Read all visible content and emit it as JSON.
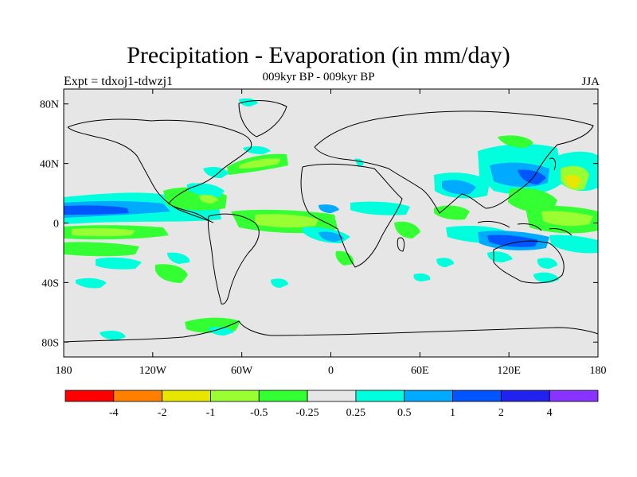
{
  "title": "Precipitation - Evaporation (in mm/day)",
  "subtitle": "009kyr BP - 009kyr BP",
  "left_label": "Expt = tdxoj1-tdwzj1",
  "right_label": "JJA",
  "map": {
    "background_color": "#e6e6e6",
    "x_ticks": [
      {
        "lon": -180,
        "label": "180"
      },
      {
        "lon": -120,
        "label": "120W"
      },
      {
        "lon": -60,
        "label": "60W"
      },
      {
        "lon": 0,
        "label": "0"
      },
      {
        "lon": 60,
        "label": "60E"
      },
      {
        "lon": 120,
        "label": "120E"
      },
      {
        "lon": 180,
        "label": "180"
      }
    ],
    "y_ticks": [
      {
        "lat": 80,
        "label": "80N"
      },
      {
        "lat": 40,
        "label": "40N"
      },
      {
        "lat": 0,
        "label": "0"
      },
      {
        "lat": -40,
        "label": "40S"
      },
      {
        "lat": -80,
        "label": "80S"
      }
    ],
    "lon_range": [
      -180,
      180
    ],
    "lat_range": [
      -90,
      90
    ]
  },
  "colorbar": {
    "colors": [
      "#ff0000",
      "#ff8000",
      "#e6e600",
      "#99ff33",
      "#33ff33",
      "#e6e6e6",
      "#00ffdd",
      "#00aaff",
      "#0055ff",
      "#2222ee",
      "#8833ff"
    ],
    "labels": [
      "-4",
      "-2",
      "-1",
      "-0.5",
      "-0.25",
      "0.25",
      "0.5",
      "1",
      "2",
      "4"
    ]
  }
}
